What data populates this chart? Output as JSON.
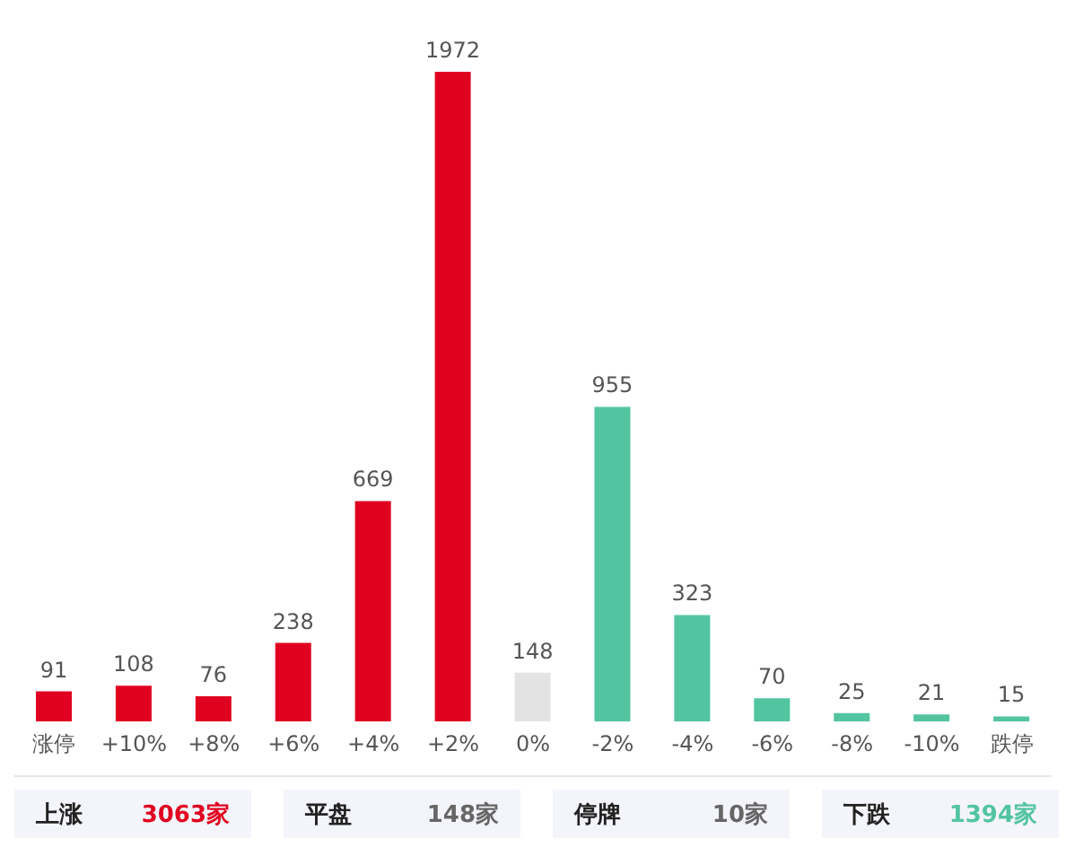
{
  "chart_data": {
    "type": "bar",
    "categories": [
      "涨停",
      "+10%",
      "+8%",
      "+6%",
      "+4%",
      "+2%",
      "0%",
      "-2%",
      "-4%",
      "-6%",
      "-8%",
      "-10%",
      "跌停"
    ],
    "values": [
      91,
      108,
      76,
      238,
      669,
      1972,
      148,
      955,
      323,
      70,
      25,
      21,
      15
    ],
    "colors": [
      "#e00020",
      "#e00020",
      "#e00020",
      "#e00020",
      "#e00020",
      "#e00020",
      "#e3e3e3",
      "#52c4a0",
      "#52c4a0",
      "#52c4a0",
      "#52c4a0",
      "#52c4a0",
      "#52c4a0"
    ],
    "data_labels": true,
    "annotations": [
      "上涨 3063家",
      "平盘 148家",
      "停牌 10家",
      "下跌 1394家"
    ]
  }
}
